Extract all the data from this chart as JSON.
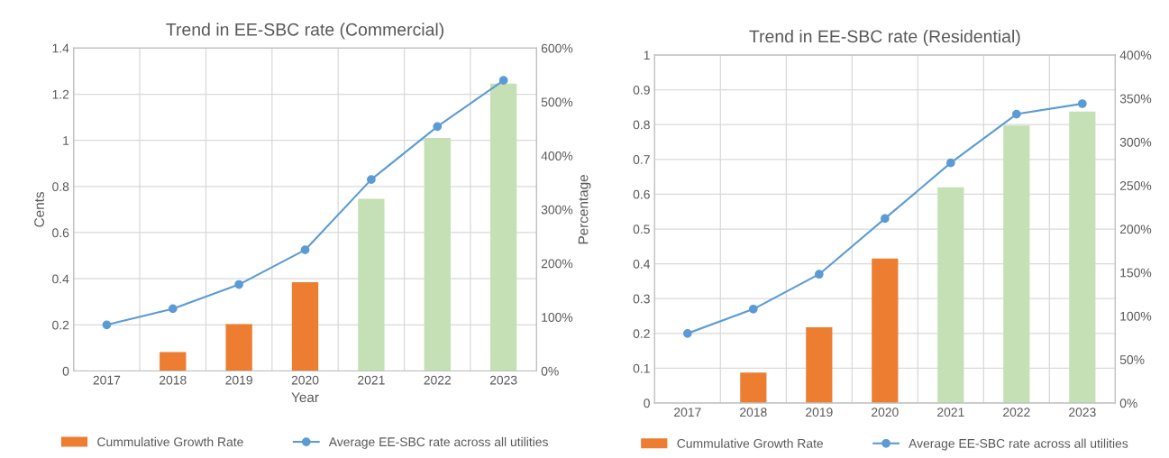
{
  "chart_data": [
    {
      "type": "bar",
      "title": "Trend in EE-SBC rate (Commercial)",
      "xlabel": "Year",
      "ylabel": "Cents",
      "y2label": "Percentage",
      "categories": [
        "2017",
        "2018",
        "2019",
        "2020",
        "2021",
        "2022",
        "2023"
      ],
      "series": [
        {
          "name": "Cummulative Growth Rate",
          "axis": "y2",
          "color": "#ed7d31",
          "colors": [
            "#ed7d31",
            "#ed7d31",
            "#ed7d31",
            "#ed7d31",
            "#c5e0b4",
            "#c5e0b4",
            "#c5e0b4"
          ],
          "values": [
            0,
            35,
            87,
            165,
            320,
            433,
            534
          ]
        },
        {
          "name": "Average EE-SBC rate across all utilities",
          "type": "line",
          "axis": "y",
          "color": "#5b9bd5",
          "marker": "circle",
          "values": [
            0.2,
            0.27,
            0.375,
            0.525,
            0.83,
            1.06,
            1.26
          ]
        }
      ],
      "ylim": [
        0,
        1.4
      ],
      "yticks": [
        0,
        0.2,
        0.4,
        0.6,
        0.8,
        1,
        1.2,
        1.4
      ],
      "y2lim": [
        0,
        600
      ],
      "y2ticks": [
        {
          "value": 0,
          "label": "0%"
        },
        {
          "value": 100,
          "label": "100%"
        },
        {
          "value": 200,
          "label": "200%"
        },
        {
          "value": 300,
          "label": "300%"
        },
        {
          "value": 400,
          "label": "400%"
        },
        {
          "value": 500,
          "label": "500%"
        },
        {
          "value": 600,
          "label": "600%"
        }
      ],
      "grid": true,
      "legend": "bottom"
    },
    {
      "type": "bar",
      "title": "Trend in EE-SBC rate (Residential)",
      "categories": [
        "2017",
        "2018",
        "2019",
        "2020",
        "2021",
        "2022",
        "2023"
      ],
      "series": [
        {
          "name": "Cummulative Growth Rate",
          "axis": "y2",
          "color": "#ed7d31",
          "colors": [
            "#ed7d31",
            "#ed7d31",
            "#ed7d31",
            "#ed7d31",
            "#c5e0b4",
            "#c5e0b4",
            "#c5e0b4"
          ],
          "values": [
            0,
            35,
            87,
            166,
            248,
            319,
            335
          ]
        },
        {
          "name": "Average EE-SBC rate across all utilities",
          "type": "line",
          "axis": "y",
          "color": "#5b9bd5",
          "marker": "circle",
          "values": [
            0.2,
            0.27,
            0.37,
            0.53,
            0.69,
            0.83,
            0.86
          ]
        }
      ],
      "ylim": [
        0,
        1
      ],
      "yticks": [
        0,
        0.1,
        0.2,
        0.3,
        0.4,
        0.5,
        0.6,
        0.7,
        0.8,
        0.9,
        1
      ],
      "y2lim": [
        0,
        400
      ],
      "y2ticks": [
        {
          "value": 0,
          "label": "0%"
        },
        {
          "value": 50,
          "label": "50%"
        },
        {
          "value": 100,
          "label": "100%"
        },
        {
          "value": 150,
          "label": "150%"
        },
        {
          "value": 200,
          "label": "200%"
        },
        {
          "value": 250,
          "label": "250%"
        },
        {
          "value": 300,
          "label": "300%"
        },
        {
          "value": 350,
          "label": "350%"
        },
        {
          "value": 400,
          "label": "400%"
        }
      ],
      "grid": true,
      "legend": "bottom"
    }
  ]
}
